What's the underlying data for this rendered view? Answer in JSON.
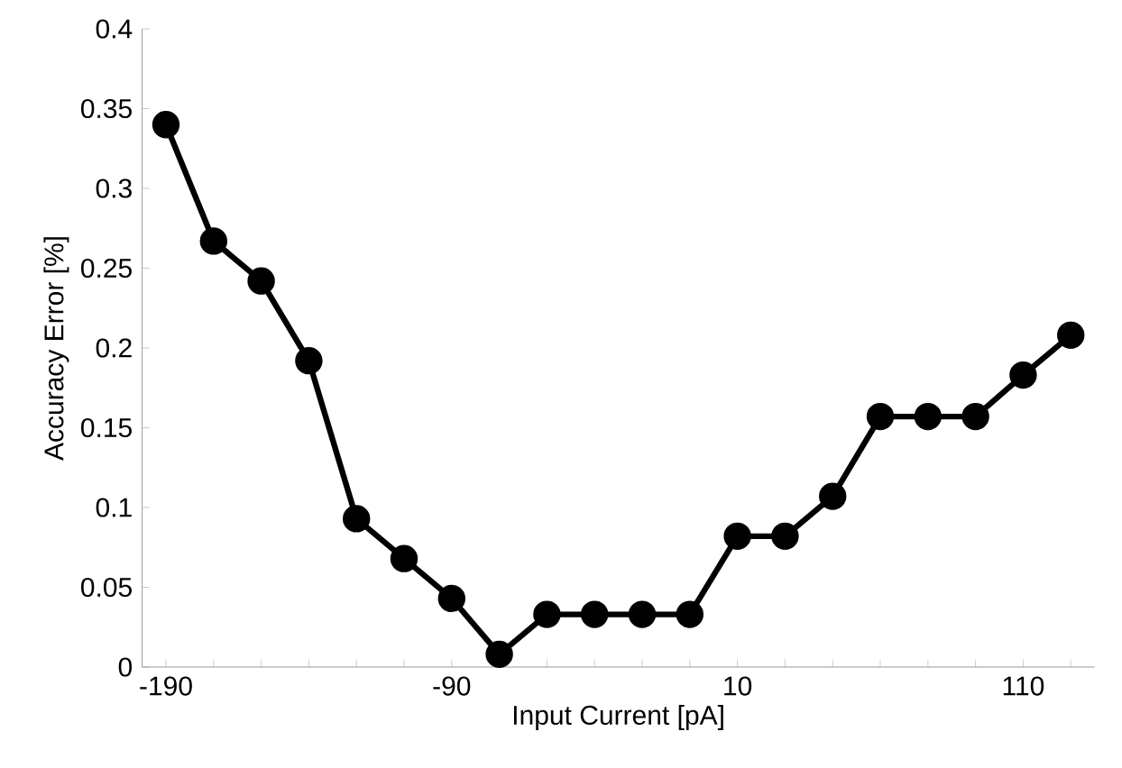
{
  "chart_data": {
    "type": "line",
    "xlabel": "Input Current [pA]",
    "ylabel": "Accuracy Error [%]",
    "categories": [
      "-190",
      null,
      null,
      null,
      null,
      null,
      "-90",
      null,
      null,
      null,
      null,
      null,
      "10",
      null,
      null,
      null,
      null,
      null,
      "110",
      null
    ],
    "series": [
      {
        "color": "#000000",
        "values": [
          0.34,
          0.267,
          0.242,
          0.192,
          0.093,
          0.068,
          0.043,
          0.008,
          0.033,
          0.033,
          0.033,
          0.033,
          0.082,
          0.082,
          0.107,
          0.157,
          0.157,
          0.157,
          0.183,
          0.208
        ]
      }
    ],
    "ylim": [
      0,
      0.4
    ],
    "yticks": [
      0,
      0.05,
      0.1,
      0.15,
      0.2,
      0.25,
      0.3,
      0.35,
      0.4
    ],
    "grid": false,
    "marker": "circle",
    "line_style": "solid"
  }
}
